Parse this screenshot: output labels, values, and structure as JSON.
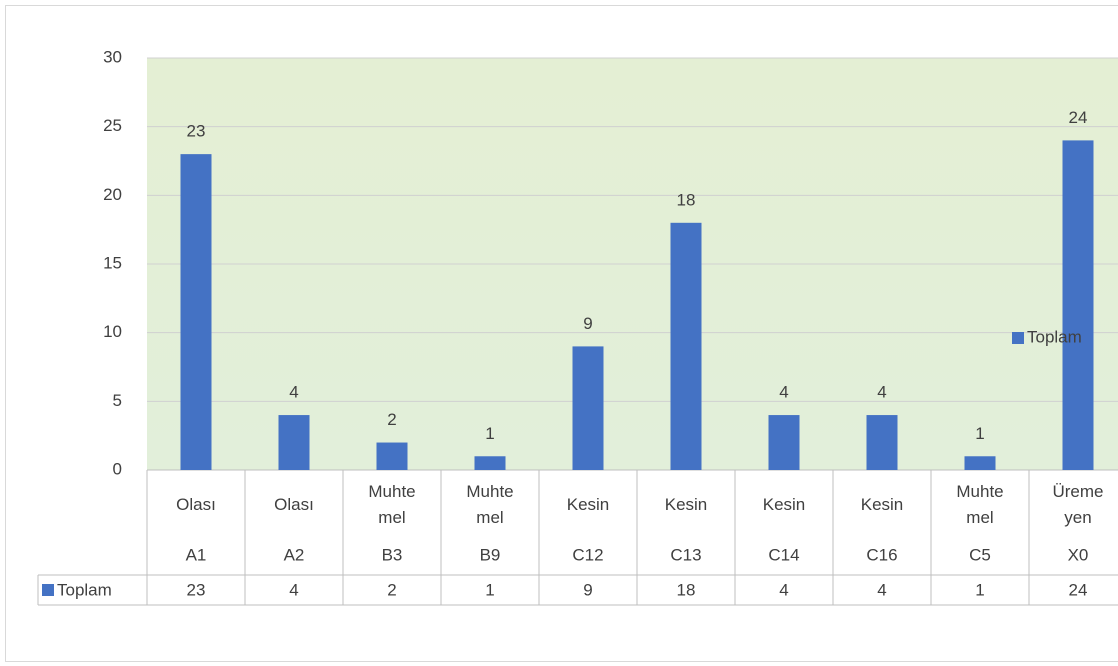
{
  "chart_data": {
    "type": "bar",
    "groups": [
      "Olası",
      "Olası",
      "Muhtemel",
      "Muhtemel",
      "Kesin",
      "Kesin",
      "Kesin",
      "Kesin",
      "Muhtemel",
      "Üremeyen"
    ],
    "categories": [
      "A1",
      "A2",
      "B3",
      "B9",
      "C12",
      "C13",
      "C14",
      "C16",
      "C5",
      "X0"
    ],
    "series": [
      {
        "name": "Toplam",
        "color": "#4472c4",
        "values": [
          23,
          4,
          2,
          1,
          9,
          18,
          4,
          4,
          1,
          24
        ]
      }
    ],
    "ylim": [
      0,
      30
    ],
    "yticks": [
      0,
      5,
      10,
      15,
      20,
      25,
      30
    ],
    "grid": true,
    "legend": "right",
    "data_table": true
  }
}
